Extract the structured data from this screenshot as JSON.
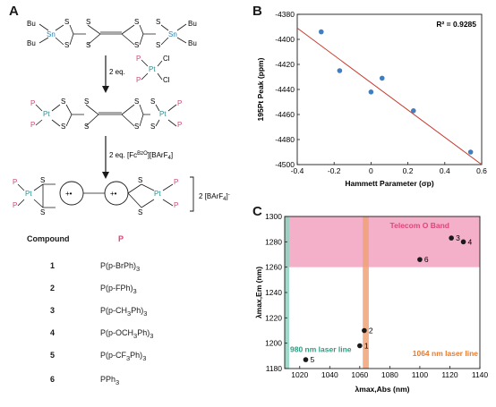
{
  "panels": {
    "a": "A",
    "b": "B",
    "c": "C"
  },
  "scheme": {
    "bu": "Bu",
    "sn": "Sn",
    "s": "S",
    "p": "P",
    "pt": "Pt",
    "cl": "Cl",
    "step1": "2 eq.",
    "step2": "2 eq. [Fc",
    "step2_sup": "BzO",
    "step2_tail": "][BArF",
    "step2_sub": "4",
    "step2_end": "]",
    "charge": "+•",
    "counterion": "2 [BArF",
    "counterion_sub": "4",
    "counterion_end": "]",
    "counterion_sup": "-"
  },
  "compound_table": {
    "header_compound": "Compound",
    "header_p": "P",
    "rows": [
      {
        "num": "1",
        "p": "P(p-BrPh)",
        "sub": "3"
      },
      {
        "num": "2",
        "p": "P(p-FPh)",
        "sub": "3"
      },
      {
        "num": "3",
        "p": "P(p-CH",
        "mid": "3",
        "rest": "Ph)",
        "sub": "3"
      },
      {
        "num": "4",
        "p": "P(p-OCH",
        "mid": "3",
        "rest": "Ph)",
        "sub": "3"
      },
      {
        "num": "5",
        "p": "P(p-CF",
        "mid": "3",
        "rest": "Ph)",
        "sub": "3"
      },
      {
        "num": "6",
        "p": "PPh",
        "sub": "3"
      }
    ]
  },
  "colors": {
    "blue": "#3f7fbf",
    "fit": "#c8382b",
    "pink": "#f2a1bf",
    "orange": "#f0a277",
    "teal": "#8fd3c2",
    "label_pink": "#e0457b",
    "label_teal": "#2e9c80",
    "label_orange": "#e57c31"
  },
  "chart_data": [
    {
      "type": "scatter",
      "xlabel": "Hammett Parameter (σp)",
      "ylabel": "195Pt Peak (ppm)",
      "xlim": [
        -0.4,
        0.6
      ],
      "ylim": [
        -4500,
        -4380
      ],
      "xticks": [
        "-0.4",
        "-0.2",
        "0",
        "0.2",
        "0.4",
        "0.6"
      ],
      "yticks": [
        "-4380",
        "-4400",
        "-4420",
        "-4440",
        "-4460",
        "-4480",
        "-4500"
      ],
      "annotation": "R² = 0.9285",
      "points": [
        {
          "x": -0.27,
          "y": -4394
        },
        {
          "x": -0.17,
          "y": -4425
        },
        {
          "x": 0.0,
          "y": -4442
        },
        {
          "x": 0.06,
          "y": -4431
        },
        {
          "x": 0.23,
          "y": -4457
        },
        {
          "x": 0.54,
          "y": -4490
        }
      ],
      "fit": {
        "x": [
          -0.4,
          0.6
        ],
        "y": [
          -4391,
          -4500
        ]
      },
      "grid": false
    },
    {
      "type": "scatter",
      "xlabel": "λmax,Abs (nm)",
      "ylabel": "λmax,Em (nm)",
      "xlim": [
        1010,
        1140
      ],
      "ylim": [
        1180,
        1300
      ],
      "xticks": [
        "1020",
        "1040",
        "1060",
        "1080",
        "1100",
        "1120",
        "1140"
      ],
      "yticks": [
        "1180",
        "1200",
        "1220",
        "1240",
        "1260",
        "1280",
        "1300"
      ],
      "points": [
        {
          "label": "1",
          "x": 1060,
          "y": 1198
        },
        {
          "label": "2",
          "x": 1063,
          "y": 1210
        },
        {
          "label": "3",
          "x": 1121,
          "y": 1283
        },
        {
          "label": "4",
          "x": 1129,
          "y": 1280
        },
        {
          "label": "5",
          "x": 1024,
          "y": 1187
        },
        {
          "label": "6",
          "x": 1100,
          "y": 1266
        }
      ],
      "bands": [
        {
          "label": "Telecom O Band",
          "axis": "y",
          "range": [
            1260,
            1300
          ],
          "color": "#f2a1bf"
        },
        {
          "label": "1064 nm laser line",
          "axis": "x",
          "range": [
            1062,
            1066
          ],
          "color": "#f0a277"
        },
        {
          "label": "980 nm laser line",
          "axis": "x",
          "range": [
            1010,
            1013
          ],
          "color": "#8fd3c2"
        }
      ],
      "grid": false
    }
  ]
}
